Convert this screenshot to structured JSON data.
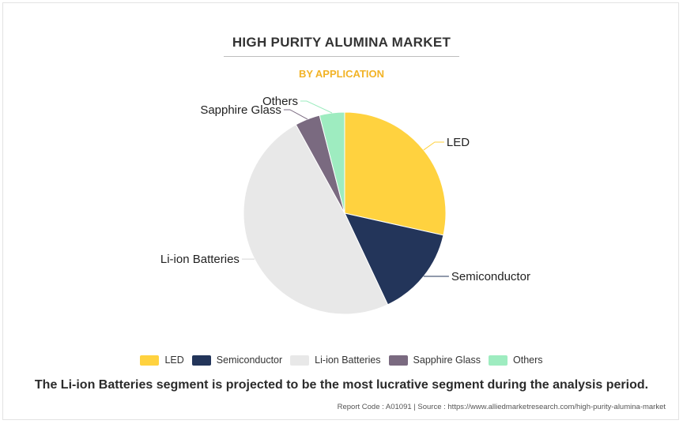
{
  "header": {
    "title": "HIGH PURITY ALUMINA MARKET",
    "subtitle": "BY APPLICATION"
  },
  "chart_data": {
    "type": "pie",
    "categories": [
      "LED",
      "Semiconductor",
      "Li-ion Batteries",
      "Sapphire Glass",
      "Others"
    ],
    "values": [
      28.5,
      14.5,
      49.0,
      4.0,
      4.0
    ],
    "colors": [
      "#ffd23f",
      "#23355a",
      "#e8e8e8",
      "#7a6a80",
      "#9eecc0"
    ],
    "title": "HIGH PURITY ALUMINA MARKET",
    "subtitle": "BY APPLICATION",
    "legend_position": "bottom"
  },
  "footer": {
    "headline": "The Li-ion Batteries segment is projected to be the most lucrative segment during the analysis period.",
    "source": "Report Code : A01091  |  Source : https://www.alliedmarketresearch.com/high-purity-alumina-market"
  }
}
